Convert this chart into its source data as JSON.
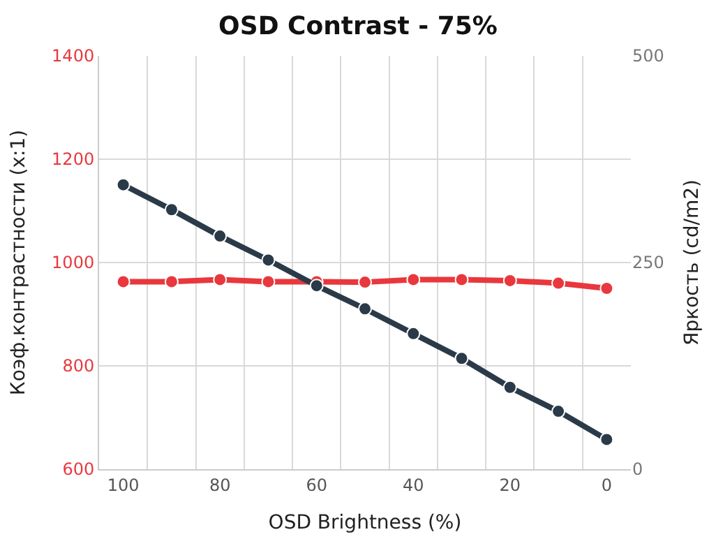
{
  "chart_data": {
    "type": "line",
    "title": "OSD Contrast - 75%",
    "xlabel": "OSD Brightness (%)",
    "ylabel": "Коэф.контрастности (x:1)",
    "y2label": "Яркость (cd/m2)",
    "categories": [
      "100",
      null,
      "80",
      null,
      "60",
      null,
      "40",
      null,
      "20",
      null,
      "0"
    ],
    "series": [
      {
        "color": "#e8383d",
        "values": [
          963,
          963,
          967,
          963,
          963,
          962,
          967,
          967,
          965,
          960,
          950
        ]
      },
      {
        "axis": "y2",
        "color": "#2b3a48",
        "values": [
          344,
          314,
          282,
          253,
          222,
          194,
          164,
          134,
          99,
          70,
          36
        ]
      }
    ],
    "ylim": [
      600,
      1400
    ],
    "yticks": [
      600,
      800,
      1000,
      1200,
      1400
    ],
    "y2lim": [
      0,
      500
    ],
    "y2ticks": [
      0,
      250,
      500
    ],
    "grid": true,
    "marker": "circle",
    "line_style": "solid"
  }
}
